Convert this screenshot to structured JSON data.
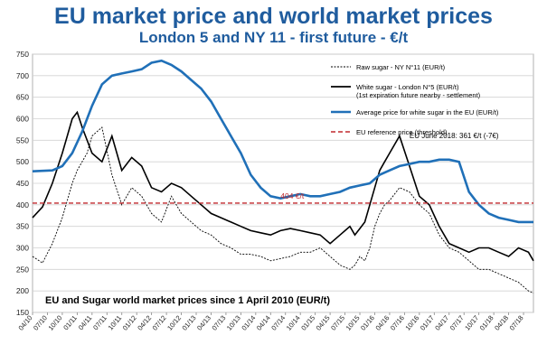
{
  "title": "EU market price and world market prices",
  "subtitle": "London 5 and NY 11 - first future - €/t",
  "chart_data": {
    "type": "line",
    "ylim": [
      150,
      750
    ],
    "yticks": [
      150,
      200,
      250,
      300,
      350,
      400,
      450,
      500,
      550,
      600,
      650,
      700,
      750
    ],
    "xlim": [
      0,
      101
    ],
    "xtick_labels": [
      "04/10",
      "07/10",
      "10/10",
      "01/11",
      "04/11",
      "07/11",
      "10/11",
      "01/12",
      "04/12",
      "07/12",
      "10/12",
      "01/13",
      "04/13",
      "07/13",
      "10/13",
      "01/14",
      "04/14",
      "07/14",
      "10/14",
      "01/15",
      "04/15",
      "07/15",
      "10/15",
      "01/16",
      "04/16",
      "07/16",
      "10/16",
      "01/17",
      "04/17",
      "07/17",
      "10/17",
      "01/18",
      "04/18",
      "07/18"
    ],
    "x_unit": "months since April 2010",
    "grid": "horizontal",
    "legend_position": "top-right",
    "caption": "EU and Sugar world market prices since 1 April 2010 (EUR/t)",
    "series": [
      {
        "name": "Raw sugar - NY N°11 (EUR/t)",
        "style": "dashed",
        "color": "#000000",
        "x": [
          0,
          2,
          4,
          6,
          7,
          8,
          9,
          11,
          12,
          14,
          16,
          18,
          20,
          22,
          24,
          26,
          28,
          30,
          32,
          34,
          36,
          38,
          40,
          42,
          44,
          46,
          48,
          50,
          52,
          54,
          56,
          58,
          60,
          62,
          64,
          65,
          66,
          67,
          68,
          69,
          70,
          71,
          72,
          74,
          76,
          78,
          80,
          82,
          84,
          86,
          88,
          90,
          92,
          94,
          96,
          98,
          100,
          101
        ],
        "y": [
          280,
          265,
          310,
          370,
          410,
          450,
          480,
          520,
          560,
          580,
          470,
          400,
          440,
          420,
          380,
          360,
          420,
          380,
          360,
          340,
          330,
          310,
          300,
          285,
          285,
          280,
          270,
          275,
          280,
          290,
          290,
          300,
          280,
          260,
          250,
          260,
          280,
          270,
          300,
          350,
          380,
          400,
          410,
          440,
          430,
          400,
          380,
          330,
          300,
          290,
          270,
          250,
          250,
          240,
          230,
          220,
          200,
          195
        ]
      },
      {
        "name": "White sugar - London N°5 (EUR/t)",
        "style": "solid",
        "color": "#000000",
        "note": "(1st expiration future nearby - settlement)",
        "x": [
          0,
          2,
          4,
          6,
          7,
          8,
          9,
          10,
          12,
          14,
          16,
          18,
          20,
          22,
          24,
          26,
          28,
          30,
          32,
          34,
          36,
          38,
          40,
          42,
          44,
          46,
          48,
          50,
          52,
          54,
          56,
          58,
          60,
          62,
          64,
          65,
          66,
          67,
          68,
          69,
          70,
          71,
          72,
          74,
          76,
          78,
          80,
          82,
          84,
          86,
          88,
          90,
          92,
          94,
          96,
          98,
          100,
          101
        ],
        "y": [
          370,
          395,
          450,
          520,
          560,
          600,
          615,
          580,
          520,
          500,
          560,
          480,
          510,
          490,
          440,
          430,
          450,
          440,
          420,
          400,
          380,
          370,
          360,
          350,
          340,
          335,
          330,
          340,
          345,
          340,
          335,
          330,
          310,
          330,
          350,
          330,
          345,
          360,
          400,
          440,
          480,
          500,
          520,
          560,
          490,
          420,
          400,
          350,
          310,
          300,
          290,
          300,
          300,
          290,
          280,
          300,
          290,
          270
        ]
      },
      {
        "name": "Average price for white sugar in the EU (EUR/t)",
        "style": "solid",
        "color": "#2070b8",
        "x": [
          0,
          4,
          6,
          8,
          10,
          12,
          14,
          16,
          18,
          20,
          22,
          24,
          26,
          28,
          30,
          32,
          34,
          36,
          38,
          40,
          42,
          44,
          46,
          48,
          50,
          52,
          54,
          56,
          58,
          60,
          62,
          64,
          66,
          68,
          70,
          72,
          74,
          76,
          78,
          80,
          82,
          84,
          86,
          88,
          90,
          92,
          94,
          96,
          98,
          100,
          101
        ],
        "y": [
          478,
          480,
          490,
          520,
          570,
          630,
          680,
          700,
          705,
          710,
          715,
          730,
          735,
          725,
          710,
          690,
          670,
          640,
          600,
          560,
          520,
          470,
          440,
          420,
          415,
          420,
          425,
          420,
          420,
          425,
          430,
          440,
          445,
          450,
          470,
          480,
          490,
          495,
          500,
          500,
          505,
          505,
          500,
          430,
          400,
          380,
          370,
          365,
          360,
          360,
          360
        ]
      },
      {
        "name": "EU reference price  (threshold)",
        "style": "dashed",
        "color": "#c0282d",
        "x": [
          0,
          101
        ],
        "y": [
          404,
          404
        ]
      }
    ],
    "annotations": [
      {
        "text": "404 €/t",
        "color": "#c0282d"
      },
      {
        "text": "EU June 2018: 361 €/t  (-7€)",
        "color": "#000000"
      }
    ]
  }
}
